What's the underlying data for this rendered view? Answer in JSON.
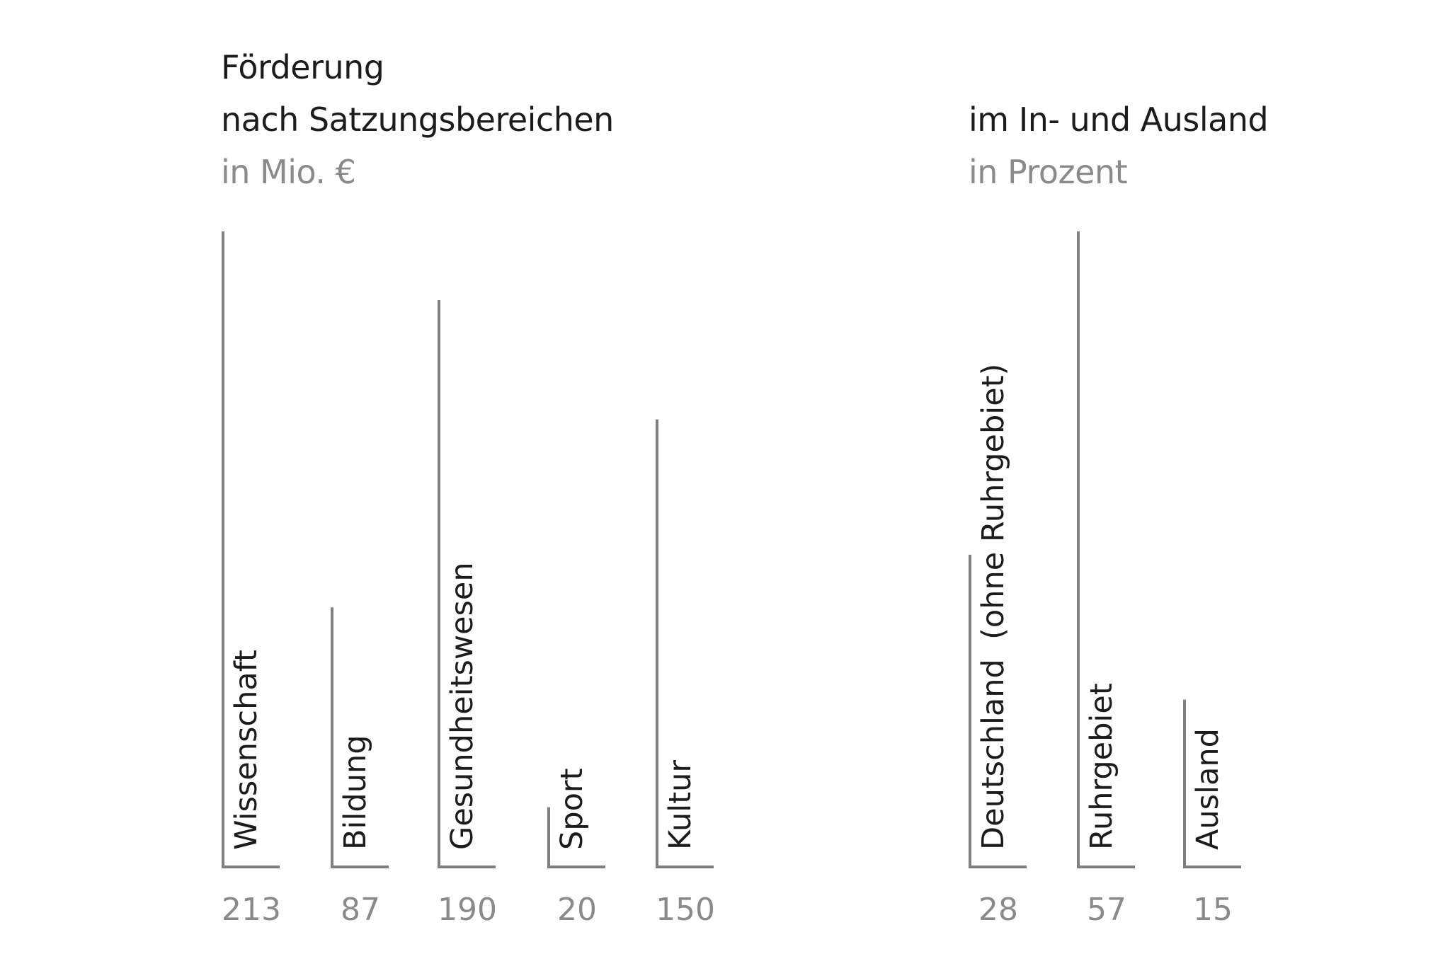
{
  "chart_data": [
    {
      "type": "bar",
      "title_line1": "Förderung",
      "title_line2": "nach Satzungsbereichen",
      "unit": "in Mio. €",
      "categories": [
        "Wissenschaft",
        "Bildung",
        "Gesundheitswesen",
        "Sport",
        "Kultur"
      ],
      "values": [
        213,
        87,
        190,
        20,
        150
      ],
      "value_labels": [
        "213",
        "87",
        "190",
        "20",
        "150"
      ],
      "ylim": [
        0,
        213
      ],
      "grid": false,
      "legend": "none",
      "color": "#7f7f7f"
    },
    {
      "type": "bar",
      "title": "im In- und Ausland",
      "unit": "in Prozent",
      "categories": [
        "Deutschland  (ohne Ruhrgebiet)",
        "Ruhrgebiet",
        "Ausland"
      ],
      "values": [
        28,
        57,
        15
      ],
      "value_labels": [
        "28",
        "57",
        "15"
      ],
      "ylim": [
        0,
        57
      ],
      "grid": false,
      "legend": "none",
      "color": "#7f7f7f"
    }
  ]
}
